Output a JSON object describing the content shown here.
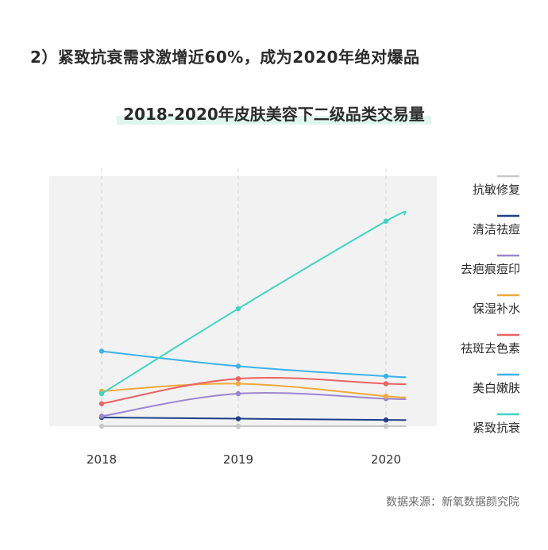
{
  "headline": "2）紧致抗衰需求激增近60%，成为2020年绝对爆品",
  "source": "数据来源：新氧数据颜究院",
  "chart_data": {
    "type": "line",
    "title": "2018-2020年皮肤美容下二级品类交易量",
    "xlabel": "",
    "ylabel": "",
    "categories": [
      "2018",
      "2019",
      "2020"
    ],
    "ylim": [
      0,
      100
    ],
    "grid": "vertical-dashed",
    "legend": "right",
    "series": [
      {
        "name": "抗敏修复",
        "color": "#c8c8c8",
        "values": [
          0,
          0,
          0
        ]
      },
      {
        "name": "清洁祛痘",
        "color": "#1f3f8a",
        "values": [
          3.5,
          3,
          2.5
        ]
      },
      {
        "name": "去疤痕痘印",
        "color": "#9a86d0",
        "values": [
          4,
          13,
          11
        ]
      },
      {
        "name": "保湿补水",
        "color": "#f0a93a",
        "values": [
          14,
          17,
          12
        ]
      },
      {
        "name": "祛斑去色素",
        "color": "#ea6363",
        "values": [
          9,
          19,
          17
        ]
      },
      {
        "name": "美白嫩肤",
        "color": "#3bb1ec",
        "values": [
          30,
          24,
          20
        ]
      },
      {
        "name": "紧致抗衰",
        "color": "#3fd3c4",
        "values": [
          13,
          47,
          82
        ]
      }
    ]
  }
}
